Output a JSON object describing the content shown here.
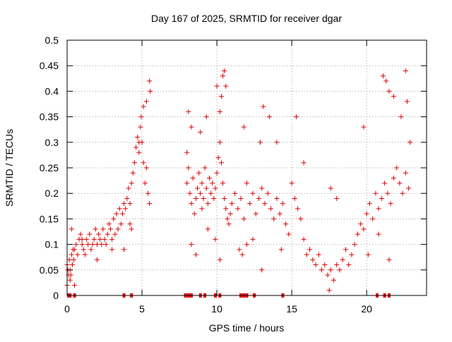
{
  "chart_data": {
    "type": "scatter",
    "title": "Day 167 of 2025, SRMTID for receiver dgar",
    "xlabel": "GPS time / hours",
    "ylabel": "SRMTID / TECUs",
    "xlim": [
      0,
      24
    ],
    "ylim": [
      0,
      0.5
    ],
    "xticks": [
      0,
      5,
      10,
      15,
      20
    ],
    "xtick_labels": [
      "0",
      "5",
      "10",
      "15",
      "20"
    ],
    "yticks": [
      0,
      0.05,
      0.1,
      0.15,
      0.2,
      0.25,
      0.3,
      0.35,
      0.4,
      0.45,
      0.5
    ],
    "ytick_labels": [
      "0",
      "0.05",
      "0.1",
      "0.15",
      "0.2",
      "0.25",
      "0.3",
      "0.35",
      "0.4",
      "0.45",
      "0.5"
    ],
    "grid": true,
    "marker": "plus",
    "marker_color": "#e00000",
    "series": [
      {
        "name": "SRMTID",
        "x": [
          0.0,
          0.05,
          0.1,
          0.15,
          0.2,
          0.25,
          0.3,
          0.35,
          0.4,
          0.45,
          0.5,
          0.6,
          0.7,
          0.8,
          0.9,
          1.0,
          1.1,
          1.2,
          1.3,
          1.4,
          1.5,
          1.6,
          1.7,
          1.8,
          1.9,
          2.0,
          2.1,
          2.2,
          2.3,
          2.4,
          2.5,
          2.6,
          2.7,
          2.8,
          2.9,
          3.0,
          3.1,
          3.2,
          3.3,
          3.4,
          3.5,
          3.6,
          3.7,
          3.8,
          3.9,
          4.0,
          4.1,
          4.2,
          4.3,
          4.4,
          4.5,
          4.6,
          4.7,
          4.8,
          4.9,
          5.0,
          5.1,
          5.2,
          5.3,
          5.4,
          5.5,
          8.0,
          8.1,
          8.2,
          8.3,
          8.4,
          8.5,
          8.6,
          8.7,
          8.8,
          8.9,
          9.0,
          9.1,
          9.2,
          9.3,
          9.4,
          9.5,
          9.6,
          9.7,
          9.8,
          9.9,
          10.0,
          10.1,
          10.2,
          10.3,
          10.4,
          10.5,
          10.6,
          10.7,
          10.8,
          10.9,
          11.0,
          11.2,
          11.4,
          11.6,
          11.8,
          12.0,
          12.2,
          12.4,
          12.6,
          12.8,
          13.0,
          13.2,
          13.4,
          13.6,
          13.8,
          14.0,
          14.2,
          14.4,
          14.6,
          14.8,
          15.0,
          15.2,
          15.4,
          15.6,
          15.8,
          16.0,
          16.2,
          16.4,
          16.6,
          16.8,
          17.0,
          17.2,
          17.4,
          17.6,
          17.8,
          18.0,
          18.2,
          18.4,
          18.6,
          18.8,
          19.0,
          19.2,
          19.4,
          19.6,
          19.8,
          20.0,
          20.2,
          20.4,
          20.6,
          20.8,
          21.0,
          21.2,
          21.4,
          21.6,
          21.8,
          22.0,
          22.2,
          22.4,
          22.6,
          22.8,
          0.3,
          1.0,
          2.0,
          3.0,
          4.2,
          4.8,
          4.95,
          5.1,
          5.3,
          5.5,
          5.55,
          8.1,
          8.3,
          8.9,
          9.3,
          10.0,
          10.2,
          10.3,
          10.4,
          10.5,
          10.6,
          11.8,
          12.9,
          13.1,
          13.5,
          14.0,
          15.3,
          15.8,
          17.6,
          18.0,
          19.8,
          21.1,
          21.3,
          21.5,
          21.8,
          22.3,
          22.6,
          22.7,
          22.9,
          0.0,
          0.2,
          0.5,
          3.8,
          4.3,
          8.0,
          8.3,
          8.6,
          9.0,
          9.4,
          9.9,
          10.2,
          11.5,
          11.7,
          12.0,
          12.4,
          13.0,
          14.3,
          17.5,
          20.1,
          20.8,
          21.5
        ],
        "y": [
          0.06,
          0.05,
          0.04,
          0.07,
          0.05,
          0.04,
          0.08,
          0.06,
          0.09,
          0.07,
          0.09,
          0.1,
          0.08,
          0.11,
          0.12,
          0.1,
          0.09,
          0.08,
          0.11,
          0.1,
          0.12,
          0.09,
          0.1,
          0.11,
          0.13,
          0.1,
          0.12,
          0.11,
          0.1,
          0.13,
          0.11,
          0.1,
          0.12,
          0.14,
          0.13,
          0.11,
          0.15,
          0.12,
          0.16,
          0.13,
          0.17,
          0.14,
          0.16,
          0.18,
          0.17,
          0.19,
          0.21,
          0.18,
          0.22,
          0.24,
          0.26,
          0.29,
          0.31,
          0.28,
          0.33,
          0.3,
          0.26,
          0.22,
          0.25,
          0.2,
          0.18,
          0.22,
          0.25,
          0.2,
          0.18,
          0.23,
          0.16,
          0.19,
          0.21,
          0.24,
          0.2,
          0.22,
          0.19,
          0.25,
          0.21,
          0.18,
          0.23,
          0.2,
          0.22,
          0.19,
          0.21,
          0.24,
          0.27,
          0.3,
          0.26,
          0.22,
          0.19,
          0.17,
          0.15,
          0.14,
          0.16,
          0.18,
          0.2,
          0.17,
          0.19,
          0.15,
          0.22,
          0.18,
          0.2,
          0.16,
          0.19,
          0.21,
          0.18,
          0.2,
          0.17,
          0.15,
          0.19,
          0.16,
          0.18,
          0.14,
          0.12,
          0.22,
          0.19,
          0.17,
          0.15,
          0.11,
          0.08,
          0.09,
          0.07,
          0.06,
          0.08,
          0.05,
          0.06,
          0.04,
          0.05,
          0.03,
          0.06,
          0.05,
          0.07,
          0.09,
          0.06,
          0.08,
          0.1,
          0.12,
          0.14,
          0.13,
          0.16,
          0.18,
          0.15,
          0.2,
          0.17,
          0.19,
          0.22,
          0.2,
          0.18,
          0.23,
          0.25,
          0.22,
          0.2,
          0.24,
          0.21,
          0.13,
          0.11,
          0.07,
          0.09,
          0.14,
          0.3,
          0.35,
          0.37,
          0.38,
          0.42,
          0.4,
          0.36,
          0.33,
          0.32,
          0.35,
          0.41,
          0.36,
          0.39,
          0.43,
          0.44,
          0.41,
          0.33,
          0.3,
          0.37,
          0.35,
          0.3,
          0.35,
          0.26,
          0.21,
          0.19,
          0.33,
          0.43,
          0.42,
          0.4,
          0.39,
          0.35,
          0.44,
          0.38,
          0.3,
          0.02,
          0.03,
          0.02,
          0.09,
          0.13,
          0.28,
          0.1,
          0.08,
          0.17,
          0.13,
          0.11,
          0.07,
          0.09,
          0.08,
          0.1,
          0.11,
          0.05,
          0.09,
          0.01,
          0.08,
          0.12,
          0.07
        ]
      }
    ],
    "gap_ranges_hours": [
      [
        5.6,
        8.0
      ]
    ],
    "baseline_markers_x": [
      0.1,
      0.2,
      0.5,
      3.8,
      4.3,
      7.9,
      8.1,
      8.3,
      8.9,
      9.2,
      9.9,
      10.2,
      11.6,
      11.8,
      12.0,
      12.5,
      14.4,
      20.7,
      21.2,
      21.5
    ]
  }
}
